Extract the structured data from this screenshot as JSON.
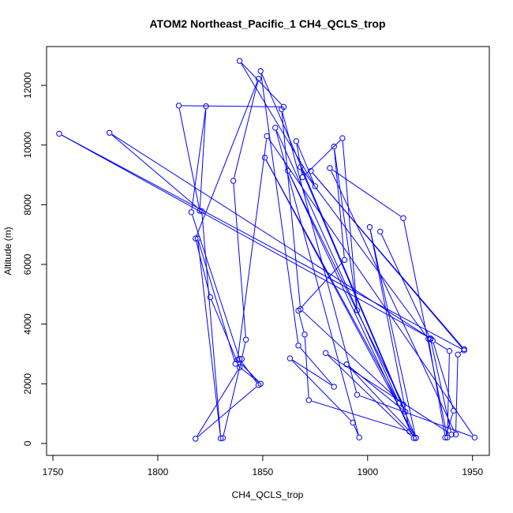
{
  "chart_data": {
    "type": "line",
    "title": "ATOM2 Northeast_Pacific_1 CH4_QCLS_trop",
    "xlabel": "CH4_QCLS_trop",
    "ylabel": "Altitude (m)",
    "xlim": [
      1747,
      1958
    ],
    "ylim": [
      -400,
      13300
    ],
    "xticks": [
      1750,
      1800,
      1850,
      1900,
      1950
    ],
    "yticks": [
      0,
      2000,
      4000,
      6000,
      8000,
      10000,
      12000
    ],
    "xtick_labels": [
      "1750",
      "1800",
      "1850",
      "1900",
      "1950"
    ],
    "ytick_labels": [
      "0",
      "2000",
      "4000",
      "6000",
      "8000",
      "10000",
      "12000"
    ],
    "grid": false,
    "marker": "open-circle",
    "series": [
      {
        "color": "#0000ff",
        "points": [
          [
            1831,
            180
          ],
          [
            1840,
            2830
          ],
          [
            1842,
            3480
          ],
          [
            1836,
            8800
          ],
          [
            1848,
            12220
          ],
          [
            1818,
            6870
          ],
          [
            1825,
            4900
          ],
          [
            1839,
            2550
          ],
          [
            1818,
            160
          ],
          [
            1848,
            1960
          ],
          [
            1839,
            2830
          ],
          [
            1816,
            7750
          ],
          [
            1823,
            11300
          ],
          [
            1820,
            7800
          ],
          [
            1810,
            11320
          ],
          [
            1860,
            11280
          ],
          [
            1839,
            12820
          ],
          [
            1875,
            8620
          ],
          [
            1866,
            10130
          ],
          [
            1869,
            8920
          ],
          [
            1888,
            10230
          ],
          [
            1895,
            4460
          ],
          [
            1884,
            9950
          ],
          [
            1889,
            6150
          ],
          [
            1867,
            4450
          ],
          [
            1870,
            3650
          ],
          [
            1872,
            1450
          ],
          [
            1920,
            400
          ],
          [
            1901,
            7250
          ],
          [
            1923,
            180
          ],
          [
            1851,
            9580
          ],
          [
            1915,
            1350
          ],
          [
            1856,
            10580
          ],
          [
            1896,
            200
          ],
          [
            1893,
            700
          ],
          [
            1863,
            2850
          ],
          [
            1884,
            1900
          ],
          [
            1867,
            3280
          ],
          [
            1849,
            12480
          ],
          [
            1918,
            1060
          ],
          [
            1890,
            2650
          ],
          [
            1923,
            190
          ],
          [
            1868,
            9260
          ],
          [
            1929,
            3500
          ],
          [
            1937,
            200
          ],
          [
            1941,
            1100
          ],
          [
            1931,
            3450
          ],
          [
            1939,
            3100
          ],
          [
            1938,
            200
          ],
          [
            1917,
            7550
          ],
          [
            1882,
            9230
          ],
          [
            1942,
            300
          ],
          [
            1943,
            2980
          ],
          [
            1946,
            3160
          ],
          [
            1873,
            9130
          ],
          [
            1946,
            3120
          ],
          [
            1753,
            10380
          ],
          [
            1930,
            3520
          ],
          [
            1777,
            10410
          ],
          [
            1821,
            7780
          ],
          [
            1830,
            170
          ],
          [
            1819,
            6870
          ],
          [
            1837,
            2670
          ],
          [
            1849,
            2000
          ],
          [
            1838,
            2800
          ],
          [
            1852,
            10300
          ],
          [
            1951,
            200
          ],
          [
            1895,
            1630
          ],
          [
            1859,
            11200
          ],
          [
            1868,
            4500
          ],
          [
            1917,
            1300
          ],
          [
            1862,
            9140
          ],
          [
            1922,
            180
          ],
          [
            1880,
            3030
          ],
          [
            1940,
            300
          ],
          [
            1930,
            3490
          ],
          [
            1906,
            7100
          ]
        ]
      }
    ]
  }
}
